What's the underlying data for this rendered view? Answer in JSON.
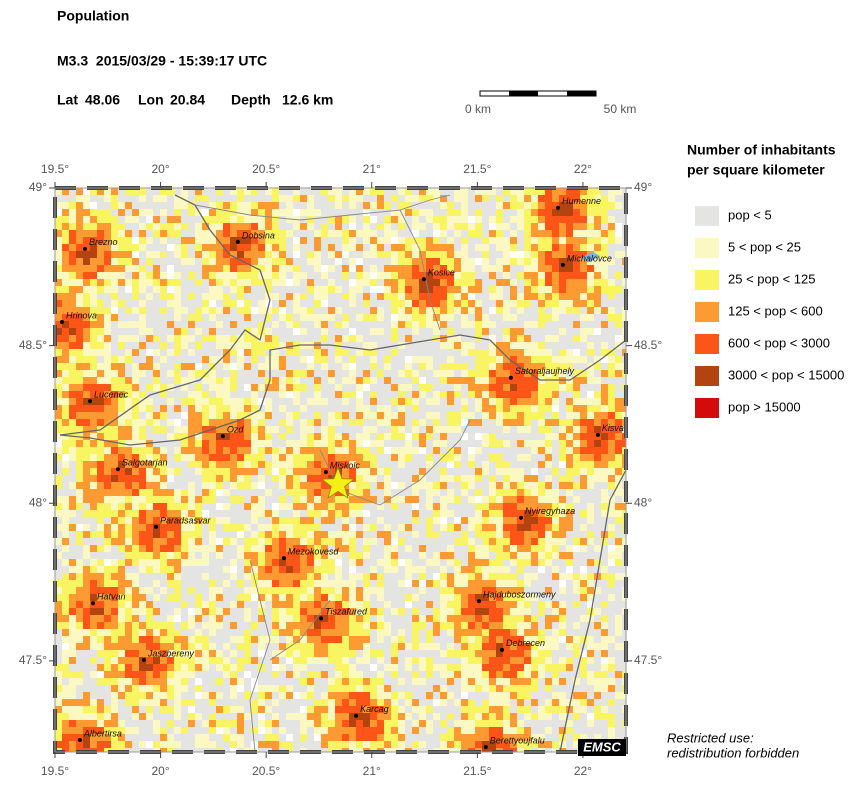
{
  "header": {
    "title": "Population",
    "event": "M3.3  2015/03/29 - 15:39:17 UTC",
    "lat_label": "Lat",
    "lat": 48.06,
    "lon_label": "Lon",
    "lon": 20.84,
    "depth_label": "Depth",
    "depth": "12.6 km"
  },
  "scale_bar": {
    "start": "0 km",
    "end": "50 km"
  },
  "map": {
    "xlim": [
      19.5,
      22.204
    ],
    "ylim": [
      47.211,
      49
    ],
    "xticks": [
      {
        "value": 19.5,
        "label": "19.5°"
      },
      {
        "value": 20,
        "label": "20°"
      },
      {
        "value": 20.5,
        "label": "20.5°"
      },
      {
        "value": 21,
        "label": "21°"
      },
      {
        "value": 21.5,
        "label": "21.5°"
      },
      {
        "value": 22,
        "label": "22°"
      }
    ],
    "yticks": [
      {
        "value": 49,
        "label": "49°"
      },
      {
        "value": 48.5,
        "label": "48.5°"
      },
      {
        "value": 48,
        "label": "48°"
      },
      {
        "value": 47.5,
        "label": "47.5°"
      }
    ],
    "cities": [
      {
        "name": "Brezno",
        "lon": 19.642,
        "lat": 48.807
      },
      {
        "name": "Dobsina",
        "lon": 20.366,
        "lat": 48.829
      },
      {
        "name": "Humenne",
        "lon": 21.882,
        "lat": 48.937
      },
      {
        "name": "Kosice",
        "lon": 21.247,
        "lat": 48.711
      },
      {
        "name": "Michalovce",
        "lon": 21.905,
        "lat": 48.756
      },
      {
        "name": "Hrinova",
        "lon": 19.533,
        "lat": 48.575
      },
      {
        "name": "Satoraljaujhely",
        "lon": 21.659,
        "lat": 48.398
      },
      {
        "name": "Lucenec",
        "lon": 19.666,
        "lat": 48.324
      },
      {
        "name": "Ozd",
        "lon": 20.295,
        "lat": 48.213
      },
      {
        "name": "Kisva",
        "lon": 22.071,
        "lat": 48.217
      },
      {
        "name": "Salgotarjan",
        "lon": 19.798,
        "lat": 48.108
      },
      {
        "name": "Miskolc",
        "lon": 20.783,
        "lat": 48.099
      },
      {
        "name": "Nyiregyhaza",
        "lon": 21.707,
        "lat": 47.954
      },
      {
        "name": "Paradsasvar",
        "lon": 19.978,
        "lat": 47.925
      },
      {
        "name": "Mezokovesd",
        "lon": 20.584,
        "lat": 47.826
      },
      {
        "name": "Hatvan",
        "lon": 19.68,
        "lat": 47.683
      },
      {
        "name": "Hajduboszormeny",
        "lon": 21.508,
        "lat": 47.689
      },
      {
        "name": "Tiszafured",
        "lon": 20.76,
        "lat": 47.635
      },
      {
        "name": "Debrecen",
        "lon": 21.617,
        "lat": 47.535
      },
      {
        "name": "Jaszbereny",
        "lon": 19.921,
        "lat": 47.503
      },
      {
        "name": "Karcag",
        "lon": 20.926,
        "lat": 47.326
      },
      {
        "name": "Albertirsa",
        "lon": 19.618,
        "lat": 47.249
      },
      {
        "name": "Berettyoujfalu",
        "lon": 21.54,
        "lat": 47.227
      }
    ]
  },
  "legend": {
    "title": [
      "Number of inhabitants",
      "per square kilometer"
    ],
    "items": [
      {
        "label": "pop < 5",
        "color": "#e4e4e2"
      },
      {
        "label": "5 < pop < 25",
        "color": "#fcf8c2"
      },
      {
        "label": "25 < pop < 125",
        "color": "#f9f461"
      },
      {
        "label": "125 < pop < 600",
        "color": "#fd9a32"
      },
      {
        "label": "600 < pop < 3000",
        "color": "#fd5517"
      },
      {
        "label": "3000 < pop < 15000",
        "color": "#b3430f"
      },
      {
        "label": "pop > 15000",
        "color": "#d50b0b"
      }
    ]
  },
  "footer": {
    "note": [
      "Restricted use:",
      "redistribution forbidden"
    ],
    "badge": "EMSC"
  }
}
